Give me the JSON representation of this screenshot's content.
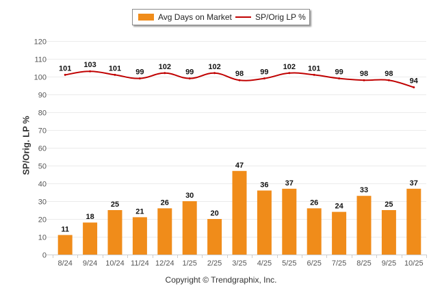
{
  "chart_data": {
    "type": "bar",
    "title": "",
    "xlabel": "",
    "ylabel": "SP/Orig. LP %",
    "ylim": [
      0,
      120
    ],
    "yticks": [
      0,
      10,
      20,
      30,
      40,
      50,
      60,
      70,
      80,
      90,
      100,
      110,
      120
    ],
    "grid": true,
    "legend_position": "top-center",
    "categories": [
      "8/24",
      "9/24",
      "10/24",
      "11/24",
      "12/24",
      "1/25",
      "2/25",
      "3/25",
      "4/25",
      "5/25",
      "6/25",
      "7/25",
      "8/25",
      "9/25",
      "10/25"
    ],
    "series": [
      {
        "name": "Avg Days on Market",
        "type": "bar",
        "color": "#f08c1a",
        "values": [
          11,
          18,
          25,
          21,
          26,
          30,
          20,
          47,
          36,
          37,
          26,
          24,
          33,
          25,
          37
        ]
      },
      {
        "name": "SP/Orig LP %",
        "type": "line",
        "color": "#c00000",
        "values": [
          101,
          103,
          101,
          99,
          102,
          99,
          102,
          98,
          99,
          102,
          101,
          99,
          98,
          98,
          94
        ]
      }
    ]
  },
  "legend": {
    "bar_label": "Avg Days on Market",
    "line_label": "SP/Orig LP %"
  },
  "footer": {
    "copyright": "Copyright © Trendgraphix, Inc."
  }
}
